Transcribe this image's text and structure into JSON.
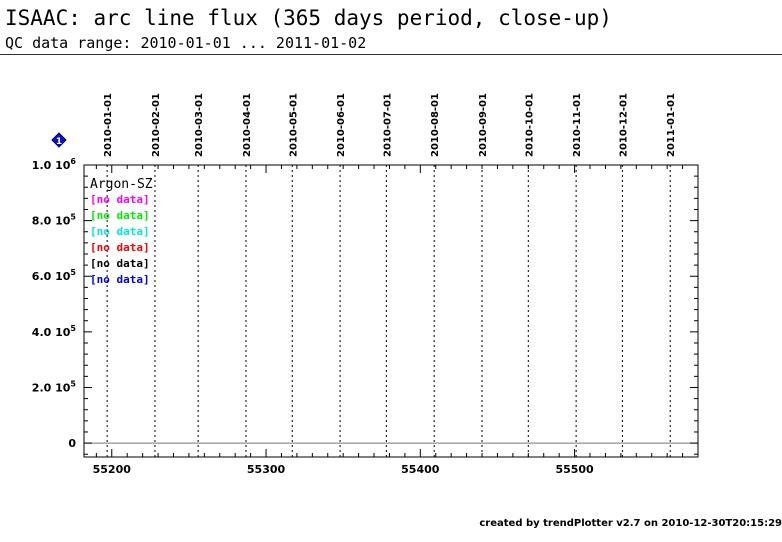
{
  "title": "ISAAC: arc line flux (365 days period, close-up)",
  "subtitle": "QC data range: 2010-01-01 ... 2011-01-02",
  "footer": "created by trendPlotter v2.7 on 2010-12-30T20:15:29",
  "marker_icon": "info-diamond-icon",
  "chart_data": {
    "type": "scatter",
    "x_ticks": [
      55200,
      55300,
      55400,
      55500
    ],
    "x_tick_labels": [
      "55200",
      "55300",
      "55400",
      "55500"
    ],
    "xlim": [
      55182,
      55580
    ],
    "ylim": [
      -50000,
      1000000
    ],
    "y_ticks": [
      {
        "value": 0,
        "mant": "0",
        "exp": ""
      },
      {
        "value": 200000,
        "mant": "2.0",
        "exp": "5"
      },
      {
        "value": 400000,
        "mant": "4.0",
        "exp": "5"
      },
      {
        "value": 600000,
        "mant": "6.0",
        "exp": "5"
      },
      {
        "value": 800000,
        "mant": "8.0",
        "exp": "5"
      },
      {
        "value": 1000000,
        "mant": "1.0",
        "exp": "6"
      }
    ],
    "date_markers": [
      {
        "label": "2010-01-01",
        "mjd": 55197
      },
      {
        "label": "2010-02-01",
        "mjd": 55228
      },
      {
        "label": "2010-03-01",
        "mjd": 55256
      },
      {
        "label": "2010-04-01",
        "mjd": 55287
      },
      {
        "label": "2010-05-01",
        "mjd": 55317
      },
      {
        "label": "2010-06-01",
        "mjd": 55348
      },
      {
        "label": "2010-07-01",
        "mjd": 55378
      },
      {
        "label": "2010-08-01",
        "mjd": 55409
      },
      {
        "label": "2010-09-01",
        "mjd": 55440
      },
      {
        "label": "2010-10-01",
        "mjd": 55470
      },
      {
        "label": "2010-11-01",
        "mjd": 55501
      },
      {
        "label": "2010-12-01",
        "mjd": 55531
      },
      {
        "label": "2011-01-01",
        "mjd": 55562
      }
    ],
    "legend_title": "Argon-SZ",
    "legend": [
      {
        "text": "[no data]",
        "color": "#ff00ff"
      },
      {
        "text": "[no data]",
        "color": "#00ee00"
      },
      {
        "text": "[no data]",
        "color": "#00e5e5"
      },
      {
        "text": "[no data]",
        "color": "#ff0000"
      },
      {
        "text": "[no data]",
        "color": "#000000"
      },
      {
        "text": "[no data]",
        "color": "#0000ee"
      }
    ],
    "series": [],
    "zero_line": true
  }
}
